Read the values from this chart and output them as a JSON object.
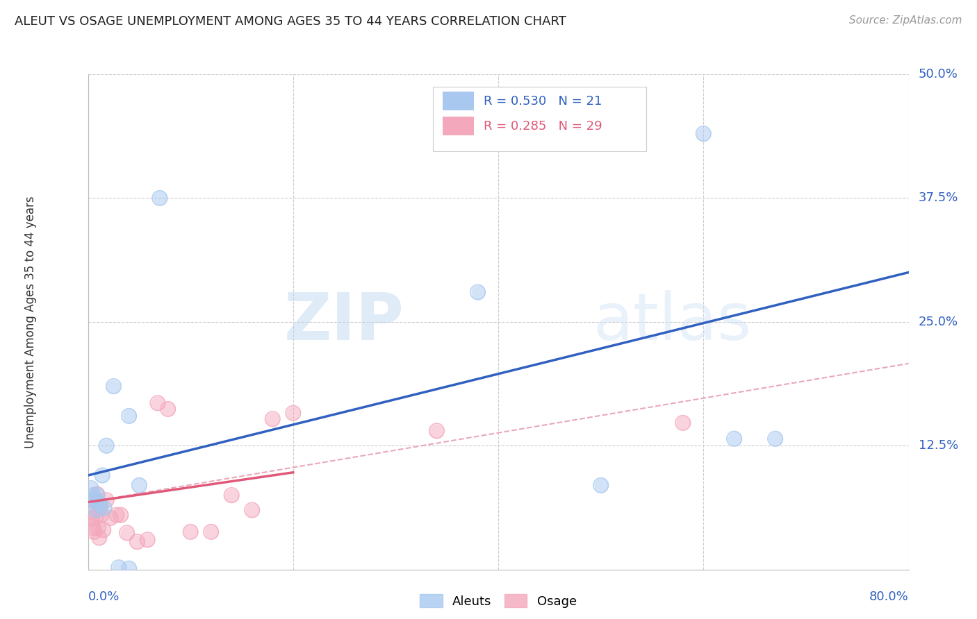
{
  "title": "ALEUT VS OSAGE UNEMPLOYMENT AMONG AGES 35 TO 44 YEARS CORRELATION CHART",
  "source": "Source: ZipAtlas.com",
  "ylabel": "Unemployment Among Ages 35 to 44 years",
  "xlim": [
    0,
    0.8
  ],
  "ylim": [
    0,
    0.5
  ],
  "xticks": [
    0.0,
    0.2,
    0.4,
    0.6,
    0.8
  ],
  "yticks": [
    0.0,
    0.125,
    0.25,
    0.375,
    0.5
  ],
  "yticklabels": [
    "",
    "12.5%",
    "25.0%",
    "37.5%",
    "50.0%"
  ],
  "background_color": "#ffffff",
  "grid_color": "#cccccc",
  "watermark_zip": "ZIP",
  "watermark_atlas": "atlas",
  "legend_r1": "R = 0.530",
  "legend_n1": "N = 21",
  "legend_r2": "R = 0.285",
  "legend_n2": "N = 29",
  "aleuts_color": "#a8c8f0",
  "osage_color": "#f4a8bc",
  "aleuts_line_color": "#3060c0",
  "osage_solid_color": "#e05878",
  "osage_dash_color": "#e8a8b8",
  "aleuts_scatter": [
    [
      0.003,
      0.082
    ],
    [
      0.005,
      0.075
    ],
    [
      0.006,
      0.07
    ],
    [
      0.008,
      0.06
    ],
    [
      0.009,
      0.075
    ],
    [
      0.01,
      0.068
    ],
    [
      0.012,
      0.065
    ],
    [
      0.014,
      0.095
    ],
    [
      0.016,
      0.062
    ],
    [
      0.018,
      0.125
    ],
    [
      0.025,
      0.185
    ],
    [
      0.03,
      0.002
    ],
    [
      0.04,
      0.001
    ],
    [
      0.04,
      0.155
    ],
    [
      0.05,
      0.085
    ],
    [
      0.07,
      0.375
    ],
    [
      0.38,
      0.28
    ],
    [
      0.5,
      0.085
    ],
    [
      0.6,
      0.44
    ],
    [
      0.63,
      0.132
    ],
    [
      0.67,
      0.132
    ]
  ],
  "osage_scatter": [
    [
      0.003,
      0.058
    ],
    [
      0.004,
      0.052
    ],
    [
      0.005,
      0.042
    ],
    [
      0.006,
      0.038
    ],
    [
      0.007,
      0.052
    ],
    [
      0.008,
      0.068
    ],
    [
      0.009,
      0.076
    ],
    [
      0.01,
      0.042
    ],
    [
      0.011,
      0.032
    ],
    [
      0.012,
      0.062
    ],
    [
      0.013,
      0.055
    ],
    [
      0.015,
      0.04
    ],
    [
      0.018,
      0.07
    ],
    [
      0.022,
      0.052
    ],
    [
      0.028,
      0.055
    ],
    [
      0.032,
      0.055
    ],
    [
      0.038,
      0.037
    ],
    [
      0.048,
      0.028
    ],
    [
      0.058,
      0.03
    ],
    [
      0.068,
      0.168
    ],
    [
      0.078,
      0.162
    ],
    [
      0.1,
      0.038
    ],
    [
      0.12,
      0.038
    ],
    [
      0.14,
      0.075
    ],
    [
      0.16,
      0.06
    ],
    [
      0.18,
      0.152
    ],
    [
      0.2,
      0.158
    ],
    [
      0.34,
      0.14
    ],
    [
      0.58,
      0.148
    ]
  ],
  "aleuts_trendline": [
    [
      0.0,
      0.095
    ],
    [
      0.8,
      0.3
    ]
  ],
  "osage_solid_line": [
    [
      0.0,
      0.068
    ],
    [
      0.2,
      0.098
    ]
  ],
  "osage_dash_line": [
    [
      0.0,
      0.068
    ],
    [
      0.8,
      0.208
    ]
  ]
}
